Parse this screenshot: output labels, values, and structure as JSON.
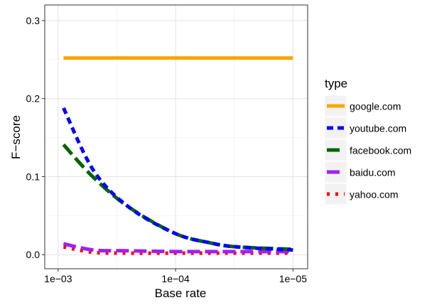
{
  "chart_data": {
    "type": "line",
    "xlabel": "Base rate",
    "ylabel": "F−score",
    "x_scale": "log-reversed",
    "x_ticks": [
      0.001,
      0.0001,
      1e-05
    ],
    "x_tick_labels": [
      "1e−03",
      "1e−04",
      "1e−05"
    ],
    "xlim": [
      0.0013,
      7.5e-06
    ],
    "y_ticks": [
      0.0,
      0.1,
      0.2,
      0.3
    ],
    "y_tick_labels": [
      "0.0",
      "0.1",
      "0.2",
      "0.3"
    ],
    "ylim": [
      -0.018,
      0.32
    ],
    "grid": true,
    "legend": {
      "title": "type",
      "position": "right"
    },
    "x": [
      0.0009,
      0.0005,
      0.00025,
      0.0001,
      5e-05,
      3e-05,
      1e-05
    ],
    "series": [
      {
        "name": "google.com",
        "color": "#FFA500",
        "dash": "solid",
        "values": [
          0.252,
          0.252,
          0.252,
          0.252,
          0.252,
          0.252,
          0.252
        ]
      },
      {
        "name": "youtube.com",
        "color": "#0000FF",
        "dash": "short",
        "values": [
          0.188,
          0.108,
          0.061,
          0.027,
          0.015,
          0.01,
          0.006
        ]
      },
      {
        "name": "facebook.com",
        "color": "#006400",
        "dash": "long",
        "values": [
          0.141,
          0.099,
          0.061,
          0.027,
          0.015,
          0.01,
          0.007
        ]
      },
      {
        "name": "baidu.com",
        "color": "#A020F0",
        "dash": "long",
        "values": [
          0.014,
          0.006,
          0.005,
          0.004,
          0.004,
          0.004,
          0.004
        ]
      },
      {
        "name": "yahoo.com",
        "color": "#FF0000",
        "dash": "dotted",
        "values": [
          0.01,
          0.003,
          0.002,
          0.002,
          0.002,
          0.002,
          0.002
        ]
      }
    ]
  }
}
